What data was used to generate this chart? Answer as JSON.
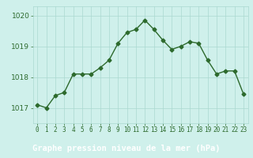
{
  "x": [
    0,
    1,
    2,
    3,
    4,
    5,
    6,
    7,
    8,
    9,
    10,
    11,
    12,
    13,
    14,
    15,
    16,
    17,
    18,
    19,
    20,
    21,
    22,
    23
  ],
  "y": [
    1017.1,
    1017.0,
    1017.4,
    1017.5,
    1018.1,
    1018.1,
    1018.1,
    1018.3,
    1018.55,
    1019.1,
    1019.45,
    1019.55,
    1019.85,
    1019.55,
    1019.2,
    1018.9,
    1019.0,
    1019.15,
    1019.1,
    1018.55,
    1018.1,
    1018.2,
    1018.2,
    1017.45
  ],
  "line_color": "#2d6a2d",
  "marker": "D",
  "marker_size": 2.5,
  "bg_color": "#cff0eb",
  "grid_color": "#aad8d0",
  "bottom_bar_color": "#2d6a2d",
  "bottom_text_color": "#ffffff",
  "xlabel": "Graphe pression niveau de la mer (hPa)",
  "xlabel_fontsize": 7.5,
  "ylim": [
    1016.5,
    1020.3
  ],
  "yticks": [
    1017,
    1018,
    1019,
    1020
  ],
  "xtick_labels": [
    "0",
    "1",
    "2",
    "3",
    "4",
    "5",
    "6",
    "7",
    "8",
    "9",
    "10",
    "11",
    "12",
    "13",
    "14",
    "15",
    "16",
    "17",
    "18",
    "19",
    "20",
    "21",
    "22",
    "23"
  ],
  "ytick_fontsize": 6.5,
  "xtick_fontsize": 5.5,
  "line_width": 1.0
}
